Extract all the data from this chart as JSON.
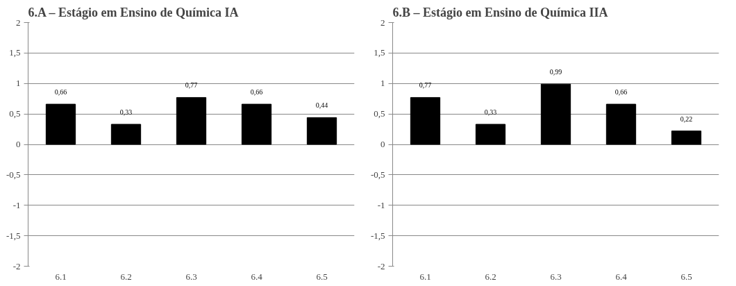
{
  "chart_data": [
    {
      "type": "bar",
      "title": "6.A – Estágio em Ensino de Química IA",
      "categories": [
        "6.1",
        "6.2",
        "6.3",
        "6.4",
        "6.5"
      ],
      "series": [
        {
          "color": "#000000",
          "values": [
            0.66,
            0.33,
            0.77,
            0.66,
            0.44
          ]
        }
      ],
      "value_labels": [
        "0,66",
        "0,33",
        "0,77",
        "0,66",
        "0,44"
      ],
      "ylim": [
        -2,
        2
      ],
      "yticks": [
        -2,
        {
          "value": -1.5,
          "label": "-1,5"
        },
        -1,
        {
          "value": -0.5,
          "label": "-0,5"
        },
        0,
        {
          "value": 0.5,
          "label": "0,5"
        },
        1,
        {
          "value": 1.5,
          "label": "1,5"
        },
        2
      ],
      "grid": "y"
    },
    {
      "type": "bar",
      "title": "6.B – Estágio em Ensino de Química IIA",
      "categories": [
        "6.1",
        "6.2",
        "6.3",
        "6.4",
        "6.5"
      ],
      "series": [
        {
          "color": "#000000",
          "values": [
            0.77,
            0.33,
            0.99,
            0.66,
            0.22
          ]
        }
      ],
      "value_labels": [
        "0,77",
        "0,33",
        "0,99",
        "0,66",
        "0,22"
      ],
      "ylim": [
        -2,
        2
      ],
      "yticks": [
        -2,
        {
          "value": -1.5,
          "label": "-1,5"
        },
        -1,
        {
          "value": -0.5,
          "label": "-0,5"
        },
        0,
        {
          "value": 0.5,
          "label": "0,5"
        },
        1,
        {
          "value": 1.5,
          "label": "1,5"
        },
        2
      ],
      "grid": "y"
    }
  ]
}
